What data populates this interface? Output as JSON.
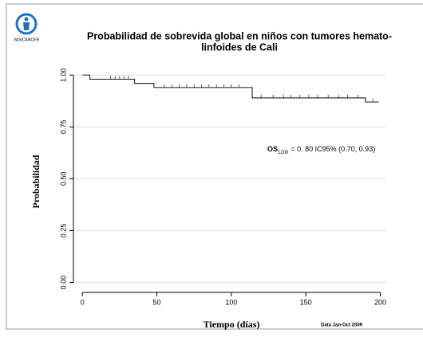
{
  "logo_text": "VASICANCER",
  "chart_data": {
    "type": "step",
    "title": [
      "Probabilidad de sobrevida global en niños con tumores hemato-",
      "linfoides de Cali"
    ],
    "x_label": "Tiempo (días)",
    "y_label": "Probabilidad",
    "annotation": {
      "prefix": "OS",
      "subscript": "1200",
      "text": "= 0. 80 IC95% (0.70, 0.93)"
    },
    "note": "Data Jan-Oct 2009",
    "x": [
      0,
      5,
      35,
      48,
      114,
      190,
      199
    ],
    "values": [
      1.0,
      0.98,
      0.96,
      0.94,
      0.89,
      0.87,
      0.87
    ],
    "color": "#333333",
    "censored": {
      "x": [
        19,
        22,
        25,
        28,
        31,
        55,
        60,
        65,
        70,
        75,
        80,
        85,
        90,
        95,
        100,
        105,
        120,
        128,
        135,
        140,
        146,
        152,
        158,
        165,
        172,
        178,
        185,
        195
      ],
      "values": [
        0.98,
        0.98,
        0.98,
        0.98,
        0.98,
        0.94,
        0.94,
        0.94,
        0.94,
        0.94,
        0.94,
        0.94,
        0.94,
        0.94,
        0.94,
        0.94,
        0.89,
        0.89,
        0.89,
        0.89,
        0.89,
        0.89,
        0.89,
        0.89,
        0.89,
        0.89,
        0.89,
        0.87
      ]
    },
    "xlim": [
      -6,
      204
    ],
    "ylim": [
      -0.04,
      1.02
    ],
    "xticks": [
      0,
      50,
      100,
      150,
      200
    ],
    "yticks": [
      {
        "value": 0,
        "label": "0.00"
      },
      {
        "value": 0.25,
        "label": "0.25"
      },
      {
        "value": 0.5,
        "label": "0.50"
      },
      {
        "value": 0.75,
        "label": "0.75"
      },
      {
        "value": 1,
        "label": "1.00"
      }
    ],
    "grid": true
  }
}
